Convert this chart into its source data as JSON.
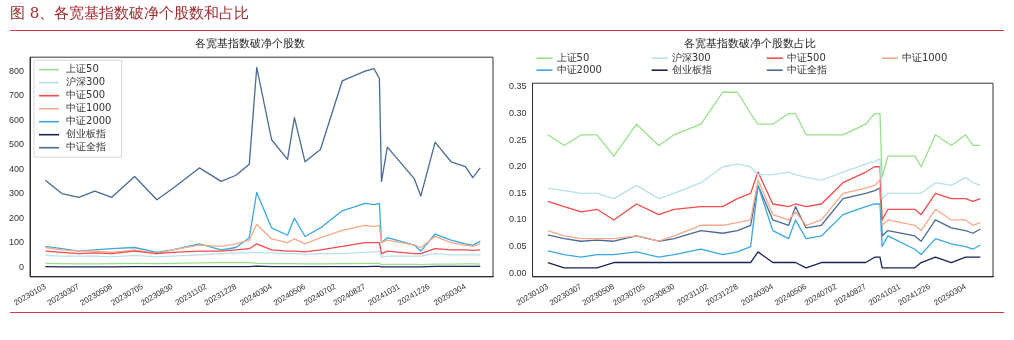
{
  "chart_data": [
    {
      "type": "line",
      "title": "各宽基指数破净个股数",
      "annotations": [
        "图 8、各宽基指数破净个股数和占比"
      ],
      "legend": "top left",
      "grid": false,
      "marker": "none",
      "line_style": "solid",
      "x": [
        "2023-01-03",
        "2023-02-03",
        "2023-03-07",
        "2023-04-06",
        "2023-05-08",
        "2023-06-20",
        "2023-08-01",
        "2023-08-30",
        "2023-10-20",
        "2023-11-30",
        "2023-12-28",
        "2024-01-22",
        "2024-02-05",
        "2024-03-04",
        "2024-04-03",
        "2024-04-16",
        "2024-05-06",
        "2024-06-04",
        "2024-07-15",
        "2024-08-27",
        "2024-09-13",
        "2024-09-23",
        "2024-09-27",
        "2024-10-08",
        "2024-11-28",
        "2024-12-10",
        "2025-01-06",
        "2025-02-05",
        "2025-03-04",
        "2025-03-18",
        "2025-04-01"
      ],
      "xlim": [
        "2022-12-05",
        "2025-04-25"
      ],
      "xticks": [
        {
          "value": "2023-01-03",
          "label": "20230103"
        },
        {
          "value": "2023-03-07",
          "label": "20230307"
        },
        {
          "value": "2023-05-08",
          "label": "20230508"
        },
        {
          "value": "2023-07-05",
          "label": "20230705"
        },
        {
          "value": "2023-08-30",
          "label": "20230830"
        },
        {
          "value": "2023-11-02",
          "label": "20231102"
        },
        {
          "value": "2023-12-28",
          "label": "20231228"
        },
        {
          "value": "2024-03-04",
          "label": "20240304"
        },
        {
          "value": "2024-05-06",
          "label": "20240506"
        },
        {
          "value": "2024-07-02",
          "label": "20240702"
        },
        {
          "value": "2024-08-27",
          "label": "20240827"
        },
        {
          "value": "2024-10-31",
          "label": "20241031"
        },
        {
          "value": "2024-12-26",
          "label": "20241226"
        },
        {
          "value": "2025-03-04",
          "label": "20250304"
        }
      ],
      "ylim": [
        -40,
        857
      ],
      "yticks": [
        0,
        100,
        200,
        300,
        400,
        500,
        600,
        700,
        800
      ],
      "series": [
        {
          "name": "上证50",
          "color": "#98e08a",
          "values": [
            15,
            14,
            13,
            13,
            14,
            15,
            14,
            15,
            17,
            18,
            18,
            18,
            15,
            14,
            14,
            14,
            13,
            13,
            14,
            15,
            15,
            15,
            10,
            11,
            11,
            10,
            12,
            12,
            13,
            13,
            12
          ]
        },
        {
          "name": "沪深300",
          "color": "#b8e0ea",
          "values": [
            48,
            45,
            45,
            45,
            42,
            48,
            42,
            45,
            50,
            55,
            58,
            58,
            60,
            58,
            55,
            55,
            52,
            55,
            55,
            60,
            62,
            65,
            40,
            45,
            45,
            45,
            55,
            50,
            50,
            50,
            50
          ]
        },
        {
          "name": "中证500",
          "color": "#f24b4b",
          "values": [
            65,
            60,
            55,
            58,
            55,
            65,
            55,
            60,
            65,
            65,
            70,
            75,
            95,
            70,
            65,
            65,
            62,
            70,
            85,
            100,
            100,
            100,
            55,
            65,
            55,
            55,
            75,
            70,
            70,
            68,
            70
          ]
        },
        {
          "name": "中证1000",
          "color": "#f7a98a",
          "values": [
            80,
            70,
            65,
            65,
            60,
            70,
            55,
            70,
            90,
            85,
            95,
            110,
            175,
            115,
            100,
            115,
            95,
            120,
            150,
            170,
            165,
            170,
            100,
            110,
            90,
            80,
            125,
            100,
            90,
            85,
            95
          ]
        },
        {
          "name": "中证2000",
          "color": "#3aa8e0",
          "values": [
            85,
            75,
            65,
            70,
            75,
            80,
            60,
            70,
            95,
            70,
            80,
            120,
            305,
            160,
            130,
            200,
            125,
            160,
            230,
            260,
            255,
            260,
            100,
            120,
            90,
            65,
            135,
            110,
            95,
            90,
            105
          ]
        },
        {
          "name": "创业板指",
          "color": "#1a2356",
          "values": [
            2,
            1,
            1,
            1,
            1,
            2,
            2,
            2,
            2,
            2,
            2,
            2,
            4,
            2,
            2,
            2,
            2,
            2,
            2,
            2,
            3,
            3,
            1,
            1,
            1,
            1,
            3,
            3,
            3,
            3,
            3
          ]
        },
        {
          "name": "中证全指",
          "color": "#4a6a96",
          "values": [
            355,
            300,
            285,
            310,
            285,
            370,
            275,
            320,
            405,
            350,
            375,
            420,
            815,
            520,
            440,
            610,
            430,
            480,
            760,
            800,
            810,
            770,
            350,
            490,
            360,
            290,
            510,
            430,
            410,
            365,
            405
          ]
        }
      ]
    },
    {
      "type": "line",
      "title": "各宽基指数破净个股数占比",
      "legend": "top",
      "grid": false,
      "marker": "none",
      "line_style": "solid",
      "x": [
        "2023-01-03",
        "2023-02-03",
        "2023-03-07",
        "2023-04-06",
        "2023-05-08",
        "2023-06-20",
        "2023-08-01",
        "2023-08-30",
        "2023-10-20",
        "2023-11-30",
        "2023-12-28",
        "2024-01-22",
        "2024-02-05",
        "2024-03-04",
        "2024-04-03",
        "2024-04-16",
        "2024-05-06",
        "2024-06-04",
        "2024-07-15",
        "2024-08-27",
        "2024-09-13",
        "2024-09-23",
        "2024-09-27",
        "2024-10-08",
        "2024-11-28",
        "2024-12-10",
        "2025-01-06",
        "2025-02-05",
        "2025-03-04",
        "2025-03-18",
        "2025-04-01"
      ],
      "xlim": [
        "2022-12-05",
        "2025-04-25"
      ],
      "xticks": [
        {
          "value": "2023-01-03",
          "label": "20230103"
        },
        {
          "value": "2023-03-07",
          "label": "20230307"
        },
        {
          "value": "2023-05-08",
          "label": "20230508"
        },
        {
          "value": "2023-07-05",
          "label": "20230705"
        },
        {
          "value": "2023-08-30",
          "label": "20230830"
        },
        {
          "value": "2023-11-02",
          "label": "20231102"
        },
        {
          "value": "2023-12-28",
          "label": "20231228"
        },
        {
          "value": "2024-03-04",
          "label": "20240304"
        },
        {
          "value": "2024-05-06",
          "label": "20240506"
        },
        {
          "value": "2024-07-02",
          "label": "20240702"
        },
        {
          "value": "2024-08-27",
          "label": "20240827"
        },
        {
          "value": "2024-10-31",
          "label": "20241031"
        },
        {
          "value": "2024-12-26",
          "label": "20241226"
        },
        {
          "value": "2025-03-04",
          "label": "20250304"
        }
      ],
      "ylim": [
        -0.007,
        0.357
      ],
      "yticks": [
        {
          "value": 0,
          "label": "0.00"
        },
        {
          "value": 0.05,
          "label": "0.05"
        },
        {
          "value": 0.1,
          "label": "0.10"
        },
        {
          "value": 0.15,
          "label": "0.15"
        },
        {
          "value": 0.2,
          "label": "0.20"
        },
        {
          "value": 0.25,
          "label": "0.25"
        },
        {
          "value": 0.3,
          "label": "0.30"
        },
        {
          "value": 0.35,
          "label": "0.35"
        }
      ],
      "series": [
        {
          "name": "上证50",
          "color": "#98e08a",
          "values": [
            0.26,
            0.24,
            0.26,
            0.26,
            0.22,
            0.28,
            0.24,
            0.26,
            0.28,
            0.34,
            0.34,
            0.3,
            0.28,
            0.28,
            0.3,
            0.3,
            0.26,
            0.26,
            0.26,
            0.28,
            0.3,
            0.3,
            0.18,
            0.22,
            0.22,
            0.2,
            0.26,
            0.24,
            0.26,
            0.24,
            0.24
          ]
        },
        {
          "name": "沪深300",
          "color": "#b8e0ea",
          "values": [
            0.16,
            0.155,
            0.15,
            0.15,
            0.14,
            0.165,
            0.14,
            0.15,
            0.17,
            0.2,
            0.205,
            0.2,
            0.185,
            0.185,
            0.19,
            0.185,
            0.18,
            0.175,
            0.19,
            0.205,
            0.21,
            0.215,
            0.14,
            0.15,
            0.15,
            0.15,
            0.17,
            0.165,
            0.18,
            0.17,
            0.165
          ]
        },
        {
          "name": "中证500",
          "color": "#f24b4b",
          "values": [
            0.135,
            0.125,
            0.115,
            0.12,
            0.1,
            0.13,
            0.11,
            0.12,
            0.125,
            0.125,
            0.14,
            0.15,
            0.19,
            0.13,
            0.125,
            0.13,
            0.125,
            0.13,
            0.17,
            0.19,
            0.2,
            0.2,
            0.1,
            0.12,
            0.12,
            0.11,
            0.15,
            0.14,
            0.14,
            0.135,
            0.14
          ]
        },
        {
          "name": "中证1000",
          "color": "#f7a98a",
          "values": [
            0.08,
            0.07,
            0.065,
            0.065,
            0.065,
            0.07,
            0.06,
            0.07,
            0.09,
            0.09,
            0.095,
            0.1,
            0.175,
            0.11,
            0.1,
            0.115,
            0.09,
            0.1,
            0.15,
            0.16,
            0.165,
            0.175,
            0.09,
            0.1,
            0.09,
            0.08,
            0.12,
            0.1,
            0.1,
            0.09,
            0.095
          ]
        },
        {
          "name": "中证2000",
          "color": "#3aa8e0",
          "values": [
            0.042,
            0.035,
            0.03,
            0.035,
            0.035,
            0.04,
            0.03,
            0.035,
            0.045,
            0.035,
            0.04,
            0.05,
            0.165,
            0.08,
            0.065,
            0.1,
            0.065,
            0.07,
            0.11,
            0.125,
            0.13,
            0.13,
            0.05,
            0.07,
            0.045,
            0.035,
            0.065,
            0.055,
            0.05,
            0.045,
            0.053
          ]
        },
        {
          "name": "创业板指",
          "color": "#1a2356",
          "values": [
            0.02,
            0.01,
            0.01,
            0.01,
            0.02,
            0.02,
            0.02,
            0.02,
            0.02,
            0.02,
            0.02,
            0.02,
            0.04,
            0.02,
            0.02,
            0.02,
            0.01,
            0.02,
            0.02,
            0.02,
            0.03,
            0.03,
            0.01,
            0.01,
            0.01,
            0.02,
            0.03,
            0.02,
            0.03,
            0.03,
            0.03
          ]
        },
        {
          "name": "中证全指",
          "color": "#4a6a96",
          "values": [
            0.072,
            0.065,
            0.06,
            0.062,
            0.06,
            0.07,
            0.06,
            0.065,
            0.08,
            0.075,
            0.08,
            0.09,
            0.165,
            0.1,
            0.09,
            0.125,
            0.085,
            0.09,
            0.14,
            0.15,
            0.155,
            0.16,
            0.07,
            0.08,
            0.07,
            0.06,
            0.1,
            0.085,
            0.08,
            0.075,
            0.083
          ]
        }
      ]
    }
  ]
}
